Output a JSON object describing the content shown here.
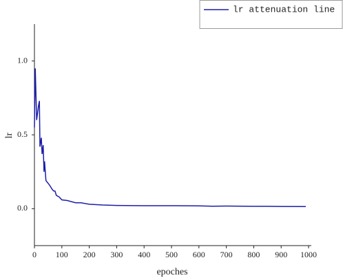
{
  "chart_data": {
    "type": "line",
    "x_label": "epoches",
    "y_label": "lr",
    "legend": "top-right",
    "series": [
      {
        "name": "lr attenuation line",
        "color": "#1c1ca8",
        "x": [
          0,
          3,
          8,
          15,
          18,
          20,
          25,
          28,
          32,
          35,
          37,
          42,
          55,
          65,
          70,
          75,
          80,
          90,
          100,
          120,
          150,
          170,
          200,
          250,
          300,
          400,
          500,
          600,
          650,
          700,
          800,
          850,
          900,
          990
        ],
        "values": [
          0.55,
          0.95,
          0.6,
          0.7,
          0.73,
          0.42,
          0.48,
          0.37,
          0.43,
          0.25,
          0.32,
          0.19,
          0.16,
          0.13,
          0.12,
          0.12,
          0.09,
          0.08,
          0.06,
          0.055,
          0.04,
          0.04,
          0.03,
          0.025,
          0.022,
          0.02,
          0.02,
          0.019,
          0.017,
          0.018,
          0.016,
          0.016,
          0.015,
          0.014
        ]
      }
    ],
    "xlim": [
      0,
      1000
    ],
    "xticks": [
      0,
      100,
      200,
      300,
      400,
      500,
      600,
      700,
      800,
      900,
      1000
    ],
    "ylim": [
      -0.25,
      1.25
    ],
    "yticks": [
      {
        "value": 0,
        "label": "0.0"
      },
      {
        "value": 0.5,
        "label": "0.5"
      },
      {
        "value": 1,
        "label": "1.0"
      }
    ]
  }
}
